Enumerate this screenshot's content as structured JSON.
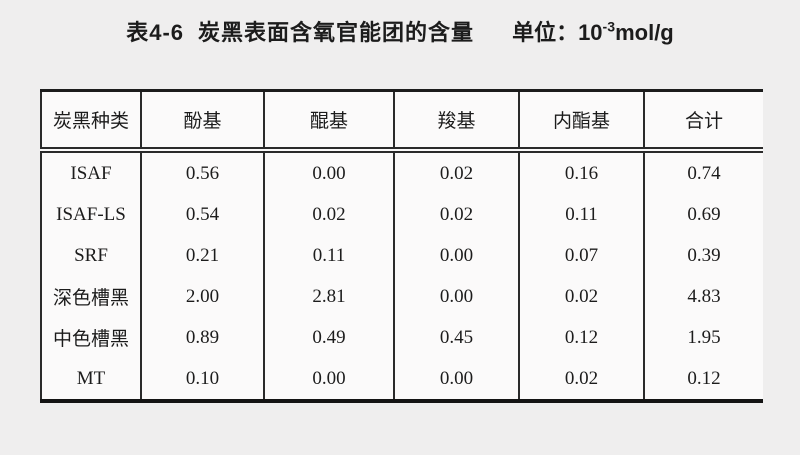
{
  "caption": {
    "table_number": "表4-6",
    "title": "炭黑表面含氧官能团的含量",
    "unit_prefix": "单位：10",
    "unit_sup": "-3",
    "unit_suffix": "mol/g"
  },
  "table": {
    "columns": [
      "炭黑种类",
      "酚基",
      "醌基",
      "羧基",
      "内酯基",
      "合计"
    ],
    "rows": [
      [
        "ISAF",
        "0.56",
        "0.00",
        "0.02",
        "0.16",
        "0.74"
      ],
      [
        "ISAF-LS",
        "0.54",
        "0.02",
        "0.02",
        "0.11",
        "0.69"
      ],
      [
        "SRF",
        "0.21",
        "0.11",
        "0.00",
        "0.07",
        "0.39"
      ],
      [
        "深色槽黑",
        "2.00",
        "2.81",
        "0.00",
        "0.02",
        "4.83"
      ],
      [
        "中色槽黑",
        "0.89",
        "0.49",
        "0.45",
        "0.12",
        "1.95"
      ],
      [
        "MT",
        "0.10",
        "0.00",
        "0.00",
        "0.02",
        "0.12"
      ]
    ]
  },
  "colors": {
    "page_background": "#efeeee",
    "table_background": "#fbfafa",
    "border": "#2a2a2a",
    "text": "#1c1c1c"
  }
}
